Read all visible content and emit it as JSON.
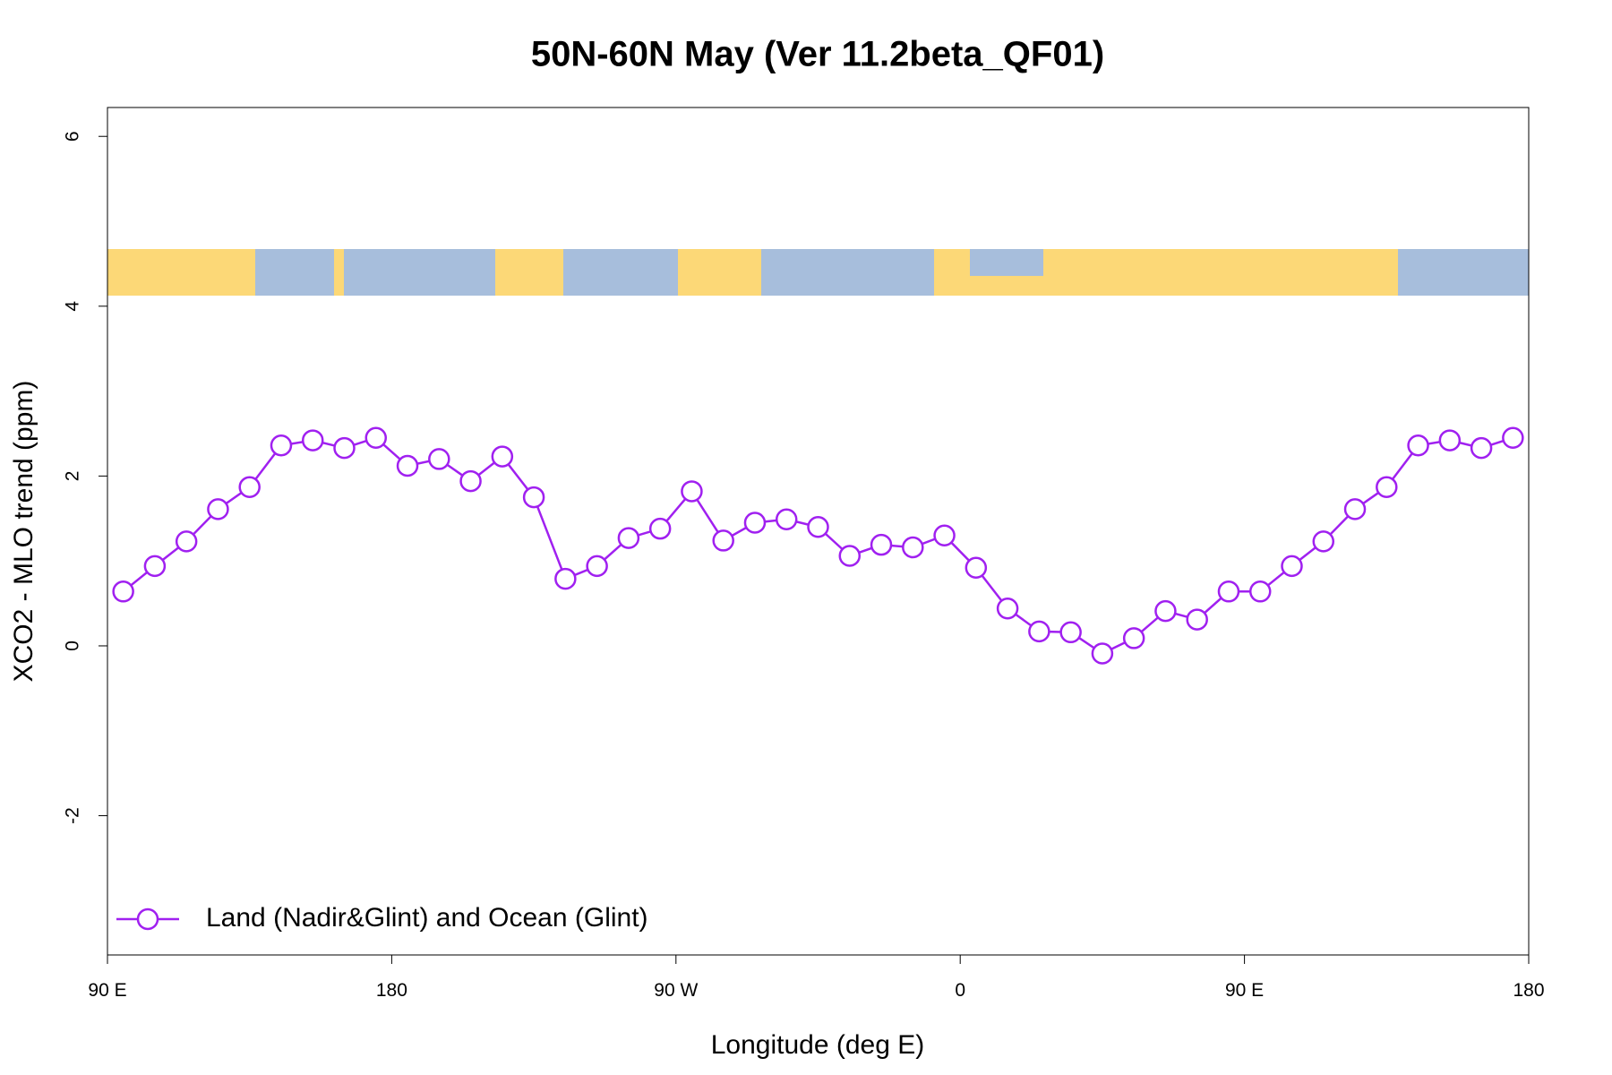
{
  "chart_data": {
    "type": "line",
    "title": "50N-60N May (Ver 11.2beta_QF01)",
    "x_label": "Longitude (deg E)",
    "y_label": "XCO2 - MLO trend (ppm)",
    "x": [
      95,
      105,
      115,
      125,
      135,
      145,
      155,
      165,
      175,
      185,
      195,
      205,
      215,
      225,
      235,
      245,
      255,
      265,
      275,
      285,
      295,
      305,
      315,
      325,
      335,
      345,
      355,
      365,
      375,
      385,
      395,
      405,
      415,
      425,
      435,
      445,
      455,
      465,
      475,
      485,
      495,
      505,
      515,
      525,
      535
    ],
    "series": [
      {
        "name": "Land (Nadir&Glint) and Ocean (Glint)",
        "color": "#a020f0",
        "values": [
          0.64,
          0.94,
          1.23,
          1.61,
          1.87,
          2.36,
          2.42,
          2.33,
          2.45,
          2.12,
          2.2,
          1.94,
          2.23,
          1.75,
          0.79,
          0.94,
          1.27,
          1.38,
          1.82,
          1.24,
          1.45,
          1.49,
          1.4,
          1.06,
          1.19,
          1.16,
          1.3,
          0.92,
          0.44,
          0.17,
          0.16,
          -0.09,
          0.09,
          0.41,
          0.31,
          0.64,
          0.64,
          0.94,
          1.23,
          1.61,
          1.87,
          2.36,
          2.42,
          2.33,
          2.45
        ]
      }
    ],
    "xlim": [
      90,
      540
    ],
    "xticks": [
      {
        "value": 90,
        "label": "90 E"
      },
      180,
      {
        "value": 270,
        "label": "90 W"
      },
      {
        "value": 360,
        "label": "0"
      },
      {
        "value": 450,
        "label": "90 E"
      },
      {
        "value": 540,
        "label": "180"
      }
    ],
    "ylim": [
      -3.64,
      6.34
    ],
    "yticks": [
      -2,
      0,
      2,
      4,
      6
    ],
    "legend": "bottom-left"
  }
}
